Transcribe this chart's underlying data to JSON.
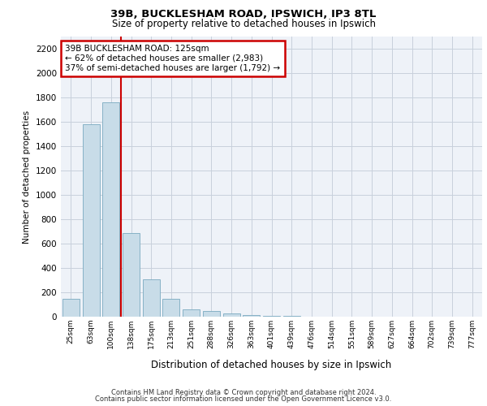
{
  "title1": "39B, BUCKLESHAM ROAD, IPSWICH, IP3 8TL",
  "title2": "Size of property relative to detached houses in Ipswich",
  "xlabel": "Distribution of detached houses by size in Ipswich",
  "ylabel": "Number of detached properties",
  "categories": [
    "25sqm",
    "63sqm",
    "100sqm",
    "138sqm",
    "175sqm",
    "213sqm",
    "251sqm",
    "288sqm",
    "326sqm",
    "363sqm",
    "401sqm",
    "439sqm",
    "476sqm",
    "514sqm",
    "551sqm",
    "589sqm",
    "627sqm",
    "664sqm",
    "702sqm",
    "739sqm",
    "777sqm"
  ],
  "values": [
    150,
    1580,
    1760,
    690,
    310,
    150,
    60,
    50,
    30,
    15,
    10,
    5,
    3,
    2,
    1,
    1,
    0,
    0,
    0,
    0,
    0
  ],
  "bar_color": "#c8dce8",
  "bar_edge_color": "#7aaac0",
  "vline_x_idx": 2.5,
  "annotation_title": "39B BUCKLESHAM ROAD: 125sqm",
  "annotation_line1": "← 62% of detached houses are smaller (2,983)",
  "annotation_line2": "37% of semi-detached houses are larger (1,792) →",
  "annotation_box_color": "#cc0000",
  "vline_color": "#cc0000",
  "ylim": [
    0,
    2300
  ],
  "yticks": [
    0,
    200,
    400,
    600,
    800,
    1000,
    1200,
    1400,
    1600,
    1800,
    2000,
    2200
  ],
  "footer1": "Contains HM Land Registry data © Crown copyright and database right 2024.",
  "footer2": "Contains public sector information licensed under the Open Government Licence v3.0.",
  "bg_color": "#ffffff",
  "plot_bg_color": "#eef2f8",
  "grid_color": "#c8d0dc"
}
